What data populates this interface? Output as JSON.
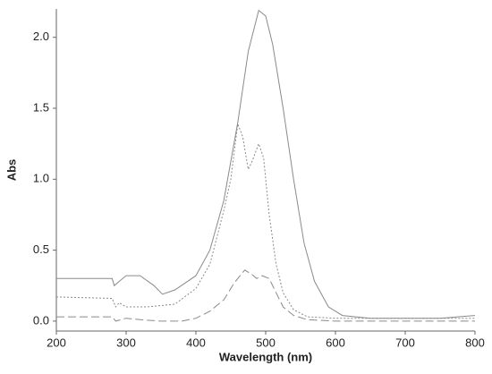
{
  "chart_data": {
    "type": "line",
    "x_label": "Wavelength (nm)",
    "y_label": "Abs",
    "xlim": [
      200,
      800
    ],
    "ylim": [
      -0.07,
      2.2
    ],
    "xticks": [
      200,
      300,
      400,
      500,
      600,
      700,
      800
    ],
    "yticks": [
      {
        "value": 0,
        "label": "0.0"
      },
      0.5,
      {
        "value": 1,
        "label": "1.0"
      },
      1.5,
      {
        "value": 2,
        "label": "2.0"
      }
    ],
    "series": [
      {
        "color": "#8a8a8a",
        "dash": "none",
        "x": [
          200,
          280,
          283,
          290,
          300,
          320,
          340,
          352,
          370,
          400,
          420,
          440,
          460,
          475,
          490,
          500,
          510,
          525,
          540,
          555,
          570,
          590,
          610,
          650,
          700,
          750,
          800
        ],
        "values": [
          0.3,
          0.3,
          0.25,
          0.28,
          0.32,
          0.32,
          0.25,
          0.19,
          0.22,
          0.32,
          0.5,
          0.85,
          1.4,
          1.9,
          2.19,
          2.15,
          1.95,
          1.5,
          1.0,
          0.55,
          0.28,
          0.1,
          0.04,
          0.02,
          0.02,
          0.02,
          0.04
        ]
      },
      {
        "color": "#8a8a8a",
        "dash": "2 2",
        "x": [
          200,
          280,
          285,
          290,
          300,
          330,
          350,
          370,
          400,
          420,
          440,
          450,
          460,
          467,
          475,
          480,
          490,
          497,
          505,
          515,
          525,
          540,
          560,
          600,
          700,
          800
        ],
        "values": [
          0.17,
          0.16,
          0.1,
          0.13,
          0.1,
          0.1,
          0.11,
          0.12,
          0.23,
          0.4,
          0.78,
          1.0,
          1.39,
          1.3,
          1.07,
          1.12,
          1.25,
          1.15,
          0.75,
          0.4,
          0.2,
          0.08,
          0.03,
          0.02,
          0.02,
          0.02
        ]
      },
      {
        "color": "#8a8a8a",
        "dash": "9 4",
        "x": [
          200,
          280,
          285,
          300,
          320,
          350,
          380,
          400,
          420,
          440,
          455,
          470,
          480,
          487,
          495,
          505,
          515,
          525,
          540,
          560,
          600,
          800
        ],
        "values": [
          0.03,
          0.03,
          0.0,
          0.02,
          0.01,
          0.0,
          0.0,
          0.02,
          0.07,
          0.15,
          0.27,
          0.36,
          0.33,
          0.3,
          0.32,
          0.3,
          0.2,
          0.1,
          0.04,
          0.01,
          0.0,
          0.0
        ]
      }
    ]
  }
}
